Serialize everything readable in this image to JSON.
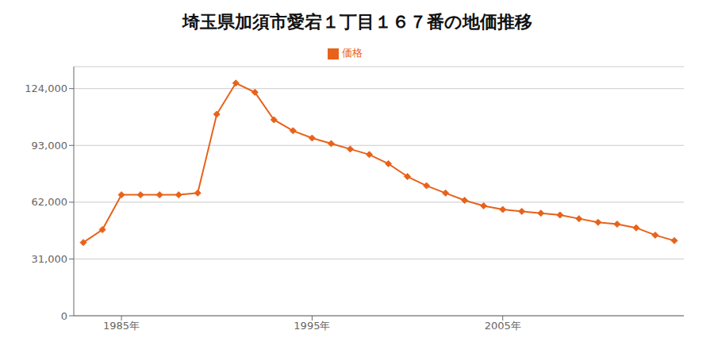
{
  "chart_data": {
    "type": "line",
    "title": "埼玉県加須市愛宕１丁目１６７番の地価推移",
    "x": [
      1983,
      1984,
      1985,
      1986,
      1987,
      1988,
      1989,
      1990,
      1991,
      1992,
      1993,
      1994,
      1995,
      1996,
      1997,
      1998,
      1999,
      2000,
      2001,
      2002,
      2003,
      2004,
      2005,
      2006,
      2007,
      2008,
      2009,
      2010,
      2011,
      2012,
      2013,
      2014
    ],
    "series": [
      {
        "name": "価格",
        "color": "#E8621A",
        "marker": "diamond",
        "values": [
          40000,
          47000,
          66000,
          66000,
          66000,
          66000,
          67000,
          110000,
          127000,
          122000,
          107000,
          101000,
          97000,
          94000,
          91000,
          88000,
          83000,
          76000,
          71000,
          67000,
          63000,
          60000,
          58000,
          57000,
          56000,
          55000,
          53000,
          51000,
          50000,
          48000,
          44000,
          41000
        ]
      }
    ],
    "xlim": [
      1982.5,
      2014.5
    ],
    "xticks": [
      {
        "value": 1985,
        "label": "1985年"
      },
      {
        "value": 1995,
        "label": "1995年"
      },
      {
        "value": 2005,
        "label": "2005年"
      }
    ],
    "ylim": [
      0,
      136000
    ],
    "yticks": [
      0,
      {
        "value": 31000,
        "label": "31,000"
      },
      {
        "value": 62000,
        "label": "62,000"
      },
      {
        "value": 93000,
        "label": "93,000"
      },
      {
        "value": 124000,
        "label": "124,000"
      }
    ],
    "grid": "y",
    "legend": "top"
  }
}
